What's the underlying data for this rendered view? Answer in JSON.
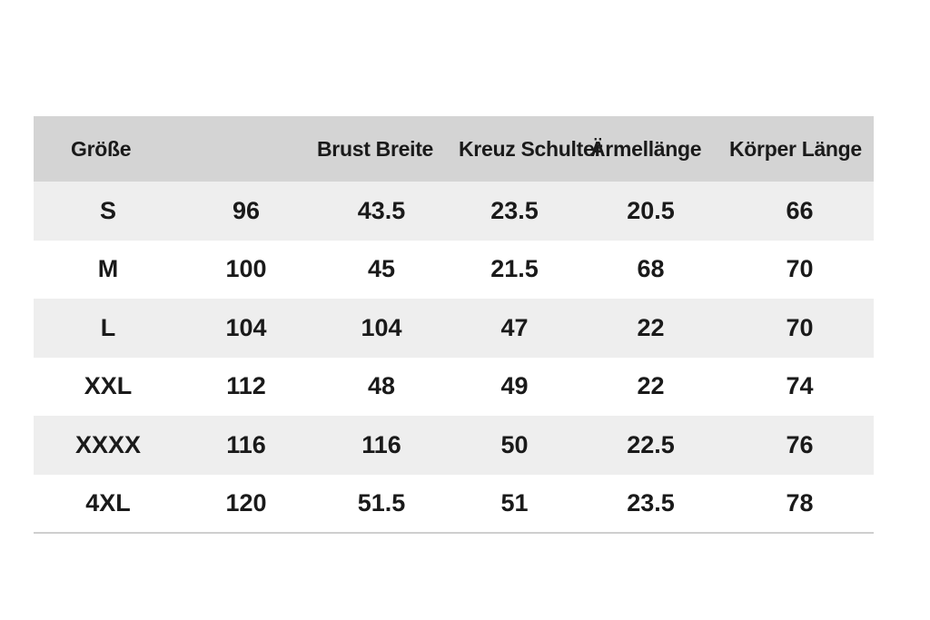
{
  "table": {
    "headers": [
      "Größe",
      "",
      "Brust Breite",
      "Kreuz Schulter",
      "Ärmellänge",
      "Körper Länge"
    ],
    "rows": [
      [
        "S",
        "96",
        "43.5",
        "23.5",
        "20.5",
        "66"
      ],
      [
        "M",
        "100",
        "45",
        "21.5",
        "68",
        "70"
      ],
      [
        "L",
        "104",
        "104",
        "47",
        "22",
        "70"
      ],
      [
        "XXL",
        "112",
        "48",
        "49",
        "22",
        "74"
      ],
      [
        "XXXX",
        "116",
        "116",
        "50",
        "22.5",
        "76"
      ],
      [
        "4XL",
        "120",
        "51.5",
        "51",
        "23.5",
        "78"
      ]
    ]
  },
  "colors": {
    "header_background": "#d4d4d4",
    "stripe_background": "#eeeeee",
    "text": "#1a1a1a"
  }
}
